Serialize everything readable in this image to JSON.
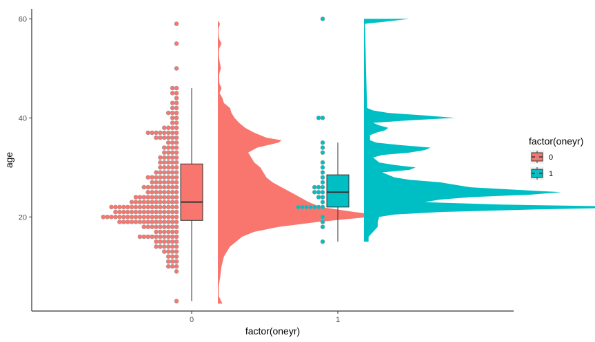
{
  "chart_data": {
    "type": "raincloud",
    "xlabel": "factor(oneyr)",
    "ylabel": "age",
    "categories": [
      "0",
      "1"
    ],
    "ylim": [
      1,
      62
    ],
    "yticks": [
      20,
      40,
      60
    ],
    "grid": false,
    "legend": {
      "title": "factor(oneyr)",
      "placement": "right",
      "entries": [
        {
          "label": "0",
          "color": "#F8766D"
        },
        {
          "label": "1",
          "color": "#00BFC4"
        }
      ]
    },
    "colors": {
      "group0": "#F8766D",
      "group1": "#00BFC4",
      "dot_outline": "#999999"
    },
    "boxplots": [
      {
        "group": "0",
        "min": 3,
        "q1": 19.3,
        "median": 23,
        "q3": 30.7,
        "max": 46
      },
      {
        "group": "1",
        "min": 15,
        "q1": 22,
        "median": 25,
        "q3": 28.5,
        "max": 35
      }
    ],
    "dot_counts": [
      {
        "group": "0",
        "counts": {
          "3": 1,
          "9": 1,
          "10": 3,
          "11": 3,
          "12": 3,
          "13": 4,
          "14": 6,
          "15": 6,
          "16": 10,
          "17": 6,
          "18": 9,
          "19": 15,
          "20": 19,
          "21": 16,
          "22": 17,
          "23": 12,
          "24": 11,
          "25": 8,
          "26": 9,
          "27": 7,
          "28": 8,
          "29": 6,
          "30": 5,
          "31": 5,
          "32": 5,
          "33": 4,
          "34": 4,
          "35": 3,
          "36": 6,
          "37": 8,
          "38": 4,
          "39": 2,
          "40": 2,
          "41": 3,
          "42": 2,
          "43": 2,
          "44": 1,
          "45": 2,
          "46": 2,
          "50": 1,
          "55": 1,
          "59": 1
        }
      },
      {
        "group": "1",
        "counts": {
          "15": 1,
          "18": 1,
          "19": 1,
          "20": 1,
          "22": 7,
          "23": 1,
          "24": 2,
          "25": 3,
          "26": 3,
          "27": 1,
          "28": 1,
          "29": 1,
          "30": 1,
          "31": 1,
          "33": 1,
          "34": 1,
          "35": 1,
          "40": 2,
          "60": 1
        }
      }
    ],
    "densities": [
      {
        "group": "0",
        "y": [
          2.5,
          4,
          6,
          8,
          10,
          12,
          14,
          15,
          16,
          17,
          18,
          19,
          20,
          20.5,
          21,
          22,
          23,
          24,
          25,
          26,
          27,
          28,
          29,
          30,
          31,
          32,
          33,
          34,
          35,
          35.5,
          36,
          37,
          38,
          39,
          40,
          41,
          42,
          43,
          44,
          45,
          46,
          47,
          48,
          49,
          50,
          51,
          52,
          53,
          54,
          55,
          56,
          57,
          58,
          59,
          59.5
        ],
        "density": [
          0.015,
          0.003,
          0.003,
          0.008,
          0.012,
          0.02,
          0.04,
          0.06,
          0.08,
          0.12,
          0.2,
          0.33,
          0.5,
          0.52,
          0.45,
          0.34,
          0.3,
          0.27,
          0.24,
          0.21,
          0.18,
          0.16,
          0.15,
          0.14,
          0.12,
          0.11,
          0.1,
          0.13,
          0.2,
          0.21,
          0.16,
          0.12,
          0.09,
          0.07,
          0.055,
          0.045,
          0.04,
          0.02,
          0.015,
          0.006,
          0.012,
          0.005,
          0.004,
          0.005,
          0.01,
          0.007,
          0.004,
          0.003,
          0.004,
          0.012,
          0.004,
          0.002,
          0.002,
          0.007,
          0.002
        ]
      },
      {
        "group": "1",
        "y": [
          15,
          16,
          17,
          18,
          19,
          20,
          20.5,
          21,
          21.5,
          22,
          22.5,
          23,
          23.5,
          24,
          24.5,
          25,
          25.5,
          26,
          26.5,
          27,
          27.5,
          28,
          28.5,
          29,
          29.5,
          30,
          30.5,
          31,
          31.5,
          32,
          32.5,
          33,
          33.5,
          34,
          34.5,
          35,
          35.5,
          36,
          36.5,
          37,
          37.5,
          38,
          38.5,
          39,
          39.5,
          40,
          40.5,
          41,
          41.5,
          42,
          59,
          59.5,
          60
        ],
        "density": [
          0.015,
          0.015,
          0.03,
          0.045,
          0.045,
          0.05,
          0.1,
          0.25,
          0.55,
          0.95,
          0.45,
          0.2,
          0.25,
          0.35,
          0.55,
          0.65,
          0.5,
          0.35,
          0.3,
          0.25,
          0.15,
          0.1,
          0.08,
          0.06,
          0.15,
          0.17,
          0.1,
          0.05,
          0.04,
          0.03,
          0.06,
          0.15,
          0.2,
          0.22,
          0.12,
          0.04,
          0.02,
          0.02,
          0.02,
          0.04,
          0.07,
          0.08,
          0.05,
          0.03,
          0.15,
          0.3,
          0.2,
          0.08,
          0.03,
          0.01,
          0.003,
          0.08,
          0.15
        ]
      }
    ]
  }
}
